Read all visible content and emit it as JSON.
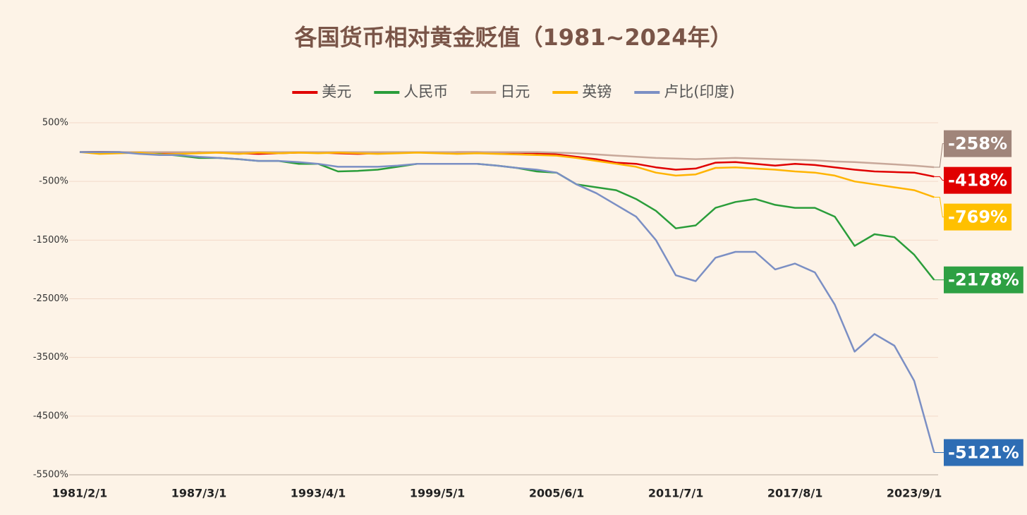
{
  "chart_data": {
    "type": "line",
    "title": "各国货币相对黄金贬值（1981~2024年）",
    "categories": [
      "1981/2/1",
      null,
      null,
      null,
      null,
      null,
      "1987/3/1",
      null,
      null,
      null,
      null,
      null,
      "1993/4/1",
      null,
      null,
      null,
      null,
      null,
      "1999/5/1",
      null,
      null,
      null,
      null,
      null,
      "2005/6/1",
      null,
      null,
      null,
      null,
      null,
      "2011/7/1",
      null,
      null,
      null,
      null,
      null,
      "2017/8/1",
      null,
      null,
      null,
      null,
      null,
      "2023/9/1",
      null
    ],
    "ylim": [
      -5500,
      500
    ],
    "yticks": [
      {
        "value": 500,
        "label": "500%"
      },
      {
        "value": -500,
        "label": "-500%"
      },
      {
        "value": -1500,
        "label": "-1500%"
      },
      {
        "value": -2500,
        "label": "-2500%"
      },
      {
        "value": -3500,
        "label": "-3500%"
      },
      {
        "value": -4500,
        "label": "-4500%"
      },
      {
        "value": -5500,
        "label": "-5500%"
      }
    ],
    "grid": true,
    "legend": "top",
    "series": [
      {
        "name": "美元",
        "color": "#e00000",
        "label_color": "#e00000",
        "values": [
          0,
          5,
          0,
          -10,
          -20,
          -10,
          0,
          -10,
          -20,
          -30,
          -20,
          -10,
          -10,
          -20,
          -30,
          -20,
          -10,
          -5,
          -10,
          0,
          0,
          -5,
          -10,
          -20,
          -40,
          -80,
          -120,
          -180,
          -200,
          -260,
          -300,
          -280,
          -180,
          -170,
          -200,
          -230,
          -200,
          -220,
          -260,
          -300,
          -330,
          -340,
          -350,
          -418
        ],
        "value_labels": [
          null,
          null,
          null,
          null,
          null,
          null,
          null,
          null,
          null,
          null,
          null,
          null,
          null,
          null,
          null,
          null,
          null,
          null,
          null,
          null,
          null,
          null,
          null,
          null,
          null,
          null,
          null,
          null,
          null,
          null,
          null,
          null,
          null,
          null,
          null,
          null,
          null,
          null,
          null,
          null,
          null,
          null,
          null,
          "-418%"
        ]
      },
      {
        "name": "人民币",
        "color": "#2a9d3a",
        "label_color": "#2ea043",
        "values": [
          0,
          0,
          0,
          -20,
          -30,
          -60,
          -100,
          -100,
          -120,
          -150,
          -150,
          -200,
          -200,
          -330,
          -320,
          -300,
          -250,
          -200,
          -200,
          -200,
          -200,
          -230,
          -270,
          -330,
          -350,
          -550,
          -600,
          -650,
          -800,
          -1000,
          -1300,
          -1250,
          -950,
          -850,
          -800,
          -900,
          -950,
          -950,
          -1100,
          -1600,
          -1400,
          -1450,
          -1750,
          -2178
        ],
        "value_labels": [
          null,
          null,
          null,
          null,
          null,
          null,
          null,
          null,
          null,
          null,
          null,
          null,
          null,
          null,
          null,
          null,
          null,
          null,
          null,
          null,
          null,
          null,
          null,
          null,
          null,
          null,
          null,
          null,
          null,
          null,
          null,
          null,
          null,
          null,
          null,
          null,
          null,
          null,
          null,
          null,
          null,
          null,
          null,
          "-2178%"
        ]
      },
      {
        "name": "日元",
        "color": "#c8a89a",
        "label_color": "#a0857a",
        "values": [
          0,
          0,
          0,
          0,
          0,
          0,
          0,
          0,
          0,
          0,
          0,
          0,
          0,
          0,
          0,
          0,
          0,
          0,
          0,
          0,
          0,
          0,
          0,
          0,
          -10,
          -20,
          -40,
          -60,
          -80,
          -100,
          -110,
          -120,
          -110,
          -100,
          -110,
          -120,
          -130,
          -140,
          -160,
          -170,
          -190,
          -210,
          -230,
          -258
        ],
        "value_labels": [
          null,
          null,
          null,
          null,
          null,
          null,
          null,
          null,
          null,
          null,
          null,
          null,
          null,
          null,
          null,
          null,
          null,
          null,
          null,
          null,
          null,
          null,
          null,
          null,
          null,
          null,
          null,
          null,
          null,
          null,
          null,
          null,
          null,
          null,
          null,
          null,
          null,
          null,
          null,
          null,
          null,
          null,
          null,
          "-258%"
        ]
      },
      {
        "name": "英镑",
        "color": "#ffb400",
        "label_color": "#ffc000",
        "values": [
          0,
          -30,
          -20,
          -10,
          -40,
          -30,
          -20,
          -10,
          -30,
          -10,
          -20,
          -10,
          -20,
          -10,
          -20,
          -30,
          -20,
          -10,
          -20,
          -30,
          -20,
          -30,
          -40,
          -50,
          -60,
          -100,
          -150,
          -200,
          -250,
          -350,
          -400,
          -380,
          -270,
          -260,
          -280,
          -300,
          -330,
          -350,
          -400,
          -500,
          -550,
          -600,
          -650,
          -769
        ],
        "value_labels": [
          null,
          null,
          null,
          null,
          null,
          null,
          null,
          null,
          null,
          null,
          null,
          null,
          null,
          null,
          null,
          null,
          null,
          null,
          null,
          null,
          null,
          null,
          null,
          null,
          null,
          null,
          null,
          null,
          null,
          null,
          null,
          null,
          null,
          null,
          null,
          null,
          null,
          null,
          null,
          null,
          null,
          null,
          null,
          "-769%"
        ]
      },
      {
        "name": "卢比(印度)",
        "color": "#7b8fc4",
        "label_color": "#2e6db4",
        "values": [
          0,
          0,
          0,
          -30,
          -50,
          -50,
          -80,
          -100,
          -120,
          -150,
          -150,
          -170,
          -200,
          -250,
          -250,
          -250,
          -230,
          -200,
          -200,
          -200,
          -200,
          -230,
          -270,
          -300,
          -350,
          -550,
          -700,
          -900,
          -1100,
          -1500,
          -2100,
          -2200,
          -1800,
          -1700,
          -1700,
          -2000,
          -1900,
          -2050,
          -2600,
          -3400,
          -3100,
          -3300,
          -3900,
          -5121
        ],
        "value_labels": [
          null,
          null,
          null,
          null,
          null,
          null,
          null,
          null,
          null,
          null,
          null,
          null,
          null,
          null,
          null,
          null,
          null,
          null,
          null,
          null,
          null,
          null,
          null,
          null,
          null,
          null,
          null,
          null,
          null,
          null,
          null,
          null,
          null,
          null,
          null,
          null,
          null,
          null,
          null,
          null,
          null,
          null,
          null,
          "-5121%"
        ]
      }
    ]
  }
}
